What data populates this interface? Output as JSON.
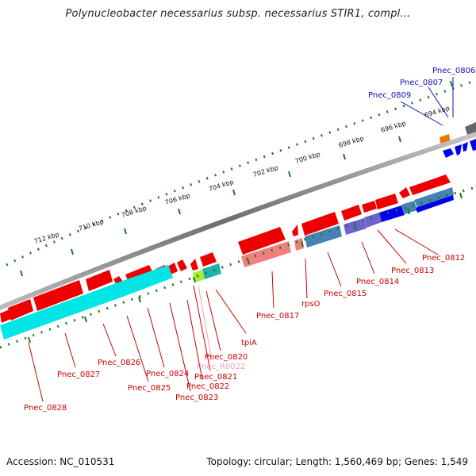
{
  "map": {
    "title": "Polynucleobacter necessarius subsp. necessarius STIR1, compl...",
    "accession": "Accession: NC_010531",
    "summary": "Topology: circular; Length: 1,560,469 bp; Genes: 1,549"
  },
  "scale_labels": [
    "694 kbp",
    "696 kbp",
    "698 kbp",
    "700 kbp",
    "702 kbp",
    "704 kbp",
    "706 kbp",
    "708 kbp",
    "710 kbp",
    "712 kbp"
  ],
  "gene_labels": [
    {
      "text": "Pnec_0806",
      "color": "#1010c0"
    },
    {
      "text": "Pnec_0807",
      "color": "#1010c0"
    },
    {
      "text": "Pnec_0809",
      "color": "#1010c0"
    },
    {
      "text": "Pnec_0812",
      "color": "#cc0000"
    },
    {
      "text": "Pnec_0813",
      "color": "#cc0000"
    },
    {
      "text": "Pnec_0814",
      "color": "#cc0000"
    },
    {
      "text": "Pnec_0815",
      "color": "#cc0000"
    },
    {
      "text": "rpsO",
      "color": "#cc0000"
    },
    {
      "text": "Pnec_0817",
      "color": "#cc0000"
    },
    {
      "text": "tpiA",
      "color": "#cc0000"
    },
    {
      "text": "Pnec_0820",
      "color": "#cc0000"
    },
    {
      "text": "Pnec_R0022",
      "color": "#e8a0c0"
    },
    {
      "text": "Pnec_0821",
      "color": "#cc0000"
    },
    {
      "text": "Pnec_0822",
      "color": "#cc0000"
    },
    {
      "text": "Pnec_0823",
      "color": "#cc0000"
    },
    {
      "text": "Pnec_0824",
      "color": "#cc0000"
    },
    {
      "text": "Pnec_0825",
      "color": "#cc0000"
    },
    {
      "text": "Pnec_0826",
      "color": "#cc0000"
    },
    {
      "text": "Pnec_0827",
      "color": "#cc0000"
    },
    {
      "text": "Pnec_0828",
      "color": "#cc0000"
    }
  ],
  "colors": {
    "backbone": "#808080",
    "tick_green": "#1a7a1a",
    "cds_forward": "#ee0000",
    "cds_reverse_light": "#f08080",
    "cog_cyan": "#00e5e5",
    "cog_blue": "#0000ee",
    "cog_purple": "#7060d0",
    "cog_steel": "#4682b4",
    "cog_lime": "#aaee33",
    "cog_teal": "#20b2aa",
    "cog_orange": "#ee7700",
    "cog_gray": "#666666",
    "label_red": "#cc0000",
    "label_blue": "#1010c0",
    "label_pink": "#e8a0c0"
  }
}
